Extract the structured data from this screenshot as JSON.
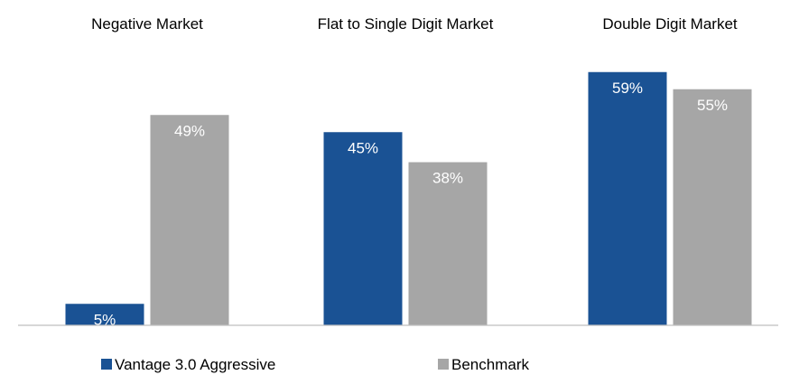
{
  "chart_data": {
    "type": "bar",
    "categories": [
      "Negative Market",
      "Flat to Single Digit Market",
      "Double Digit Market"
    ],
    "series": [
      {
        "name": "Vantage 3.0 Aggressive",
        "values": [
          5,
          45,
          59
        ],
        "color": "#1a5294"
      },
      {
        "name": "Benchmark",
        "values": [
          49,
          38,
          55
        ],
        "color": "#a6a6a6"
      }
    ],
    "value_format": "percent",
    "ylim": [
      0,
      60
    ],
    "grid": false,
    "legend_position": "bottom-left"
  }
}
